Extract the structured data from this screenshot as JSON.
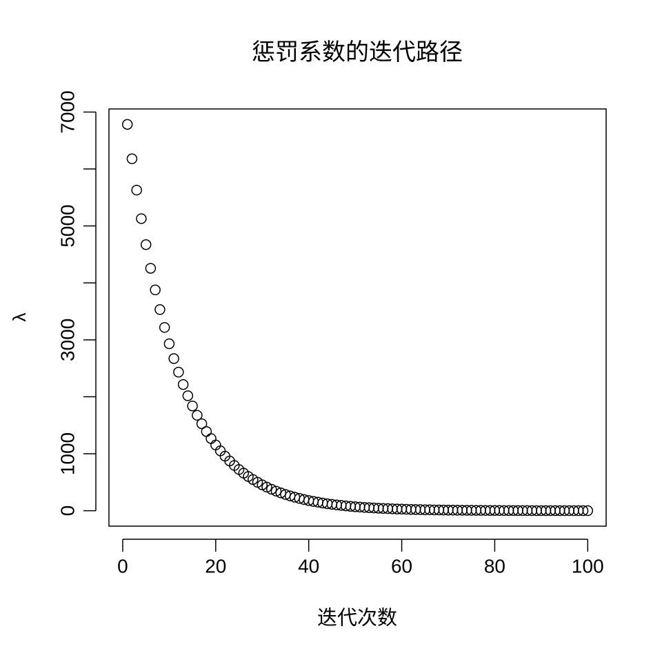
{
  "chart_data": {
    "type": "scatter",
    "title": "惩罚系数的迭代路径",
    "x_label": "迭代次数",
    "y_label": "λ",
    "x": [
      1,
      2,
      3,
      4,
      5,
      6,
      7,
      8,
      9,
      10,
      11,
      12,
      13,
      14,
      15,
      16,
      17,
      18,
      19,
      20,
      21,
      22,
      23,
      24,
      25,
      26,
      27,
      28,
      29,
      30,
      31,
      32,
      33,
      34,
      35,
      36,
      37,
      38,
      39,
      40,
      41,
      42,
      43,
      44,
      45,
      46,
      47,
      48,
      49,
      50,
      51,
      52,
      53,
      54,
      55,
      56,
      57,
      58,
      59,
      60,
      61,
      62,
      63,
      64,
      65,
      66,
      67,
      68,
      69,
      70,
      71,
      72,
      73,
      74,
      75,
      76,
      77,
      78,
      79,
      80,
      81,
      82,
      83,
      84,
      85,
      86,
      87,
      88,
      89,
      90,
      91,
      92,
      93,
      94,
      95,
      96,
      97,
      98,
      99,
      100
    ],
    "values": [
      6783,
      6179,
      5629,
      5128,
      4672,
      4256,
      3877,
      3532,
      3218,
      2931,
      2671,
      2433,
      2216,
      2019,
      1839,
      1676,
      1527,
      1391,
      1267,
      1154,
      1051,
      958,
      873,
      795,
      724,
      660,
      601,
      548,
      499,
      454,
      414,
      377,
      344,
      313,
      285,
      260,
      237,
      216,
      196,
      179,
      163,
      149,
      135,
      123,
      112,
      102,
      93,
      85,
      77,
      70,
      64,
      58,
      53,
      49,
      44,
      40,
      37,
      33,
      30,
      28,
      25,
      23,
      21,
      19,
      17,
      16,
      14,
      13,
      12,
      11,
      10,
      9,
      8,
      7.5,
      6.8,
      6.2,
      5.7,
      5.2,
      4.7,
      4.3,
      3.9,
      3.6,
      3.2,
      2.9,
      2.7,
      2.4,
      2.2,
      2,
      1.8,
      1.7,
      1.5,
      1.4,
      1.3,
      1.2,
      1.1,
      1,
      0.9,
      0.8,
      0.7,
      0.7
    ],
    "color": "#000000",
    "xlim": [
      -2.96,
      103.96
    ],
    "xticks": [
      0,
      20,
      40,
      60,
      80,
      100
    ],
    "ylim": [
      -271,
      7054
    ],
    "yticks": [
      0,
      1000,
      {
        "value": 2000,
        "label": null
      },
      3000,
      {
        "value": 4000,
        "label": null
      },
      5000,
      {
        "value": 6000,
        "label": null
      },
      7000
    ],
    "grid": false
  }
}
